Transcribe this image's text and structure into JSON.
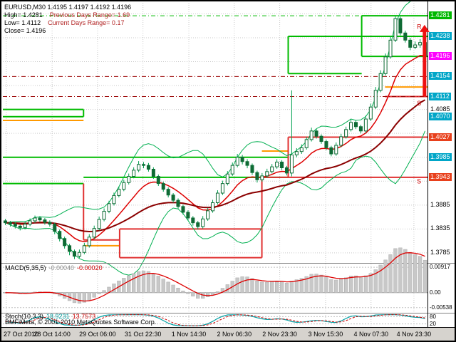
{
  "header": {
    "line1": "EURUSD,M30 1.4195 1.4197 1.4192 1.4196",
    "rows": [
      {
        "label": "High= 1.4281",
        "extra": "Previous Days Range= 1.69"
      },
      {
        "label": "Low= 1.4112",
        "extra": "Current Days Range= 0.17"
      },
      {
        "label": "Close= 1.4196",
        "extra": ""
      }
    ]
  },
  "footer": {
    "copyright": "BMFiMeta, © 2001-2010 MetaQuotes Software Corp."
  },
  "chart_data": {
    "type": "candlestick",
    "symbol": "EURUSD",
    "timeframe": "M30",
    "ylim": [
      1.3764,
      1.4308
    ],
    "grid_prices": [
      1.4285,
      1.4235,
      1.4185,
      1.4135,
      1.4085,
      1.4035,
      1.3985,
      1.3935,
      1.3885,
      1.3835,
      1.3785
    ],
    "ohlc": [
      [
        1.3852,
        1.3856,
        1.3843,
        1.3848
      ],
      [
        1.3848,
        1.3852,
        1.384,
        1.3845
      ],
      [
        1.3845,
        1.3849,
        1.3836,
        1.3841
      ],
      [
        1.3841,
        1.3845,
        1.3832,
        1.3838
      ],
      [
        1.3838,
        1.385,
        1.3834,
        1.3845
      ],
      [
        1.3845,
        1.3857,
        1.3841,
        1.3852
      ],
      [
        1.3852,
        1.3863,
        1.3848,
        1.3858
      ],
      [
        1.3858,
        1.3862,
        1.3849,
        1.3854
      ],
      [
        1.3854,
        1.3858,
        1.3844,
        1.3849
      ],
      [
        1.3849,
        1.3853,
        1.384,
        1.3845
      ],
      [
        1.3845,
        1.3848,
        1.3824,
        1.383
      ],
      [
        1.383,
        1.3834,
        1.3809,
        1.3815
      ],
      [
        1.3815,
        1.3819,
        1.3794,
        1.38
      ],
      [
        1.38,
        1.3804,
        1.378,
        1.3788
      ],
      [
        1.3788,
        1.3792,
        1.3772,
        1.3778
      ],
      [
        1.3778,
        1.3792,
        1.3774,
        1.3786
      ],
      [
        1.3786,
        1.3806,
        1.3782,
        1.38
      ],
      [
        1.38,
        1.3824,
        1.3796,
        1.3818
      ],
      [
        1.3818,
        1.3842,
        1.3814,
        1.3836
      ],
      [
        1.3836,
        1.3861,
        1.3832,
        1.3855
      ],
      [
        1.3855,
        1.3878,
        1.3851,
        1.3872
      ],
      [
        1.3872,
        1.3894,
        1.3868,
        1.3888
      ],
      [
        1.3888,
        1.3911,
        1.3884,
        1.3905
      ],
      [
        1.3905,
        1.3924,
        1.3901,
        1.3918
      ],
      [
        1.3918,
        1.3938,
        1.3914,
        1.3932
      ],
      [
        1.3932,
        1.3951,
        1.3928,
        1.3945
      ],
      [
        1.3945,
        1.3964,
        1.3941,
        1.3958
      ],
      [
        1.3958,
        1.3977,
        1.3954,
        1.397
      ],
      [
        1.397,
        1.3975,
        1.3962,
        1.3968
      ],
      [
        1.3968,
        1.3973,
        1.3955,
        1.396
      ],
      [
        1.396,
        1.3964,
        1.394,
        1.3945
      ],
      [
        1.3945,
        1.3949,
        1.3925,
        1.393
      ],
      [
        1.393,
        1.3934,
        1.3913,
        1.3918
      ],
      [
        1.3918,
        1.3922,
        1.3901,
        1.3906
      ],
      [
        1.3906,
        1.391,
        1.389,
        1.3895
      ],
      [
        1.3895,
        1.3899,
        1.3877,
        1.3882
      ],
      [
        1.3882,
        1.3886,
        1.3865,
        1.387
      ],
      [
        1.387,
        1.3874,
        1.3853,
        1.3858
      ],
      [
        1.3858,
        1.3862,
        1.3842,
        1.3848
      ],
      [
        1.3848,
        1.3852,
        1.3834,
        1.384
      ],
      [
        1.384,
        1.3862,
        1.3836,
        1.3856
      ],
      [
        1.3856,
        1.3879,
        1.3852,
        1.3873
      ],
      [
        1.3873,
        1.3896,
        1.3869,
        1.389
      ],
      [
        1.389,
        1.3916,
        1.3886,
        1.391
      ],
      [
        1.391,
        1.3936,
        1.3906,
        1.393
      ],
      [
        1.393,
        1.3956,
        1.3926,
        1.395
      ],
      [
        1.395,
        1.3974,
        1.3946,
        1.3968
      ],
      [
        1.3968,
        1.3992,
        1.3964,
        1.3985
      ],
      [
        1.3985,
        1.399,
        1.397,
        1.3976
      ],
      [
        1.3976,
        1.3981,
        1.3962,
        1.3968
      ],
      [
        1.3968,
        1.3972,
        1.3948,
        1.3953
      ],
      [
        1.3953,
        1.3957,
        1.3932,
        1.3938
      ],
      [
        1.3938,
        1.3952,
        1.3934,
        1.3946
      ],
      [
        1.3946,
        1.3961,
        1.3942,
        1.3955
      ],
      [
        1.3955,
        1.3971,
        1.3951,
        1.3965
      ],
      [
        1.3965,
        1.3981,
        1.3961,
        1.3975
      ],
      [
        1.3975,
        1.3979,
        1.3958,
        1.3963
      ],
      [
        1.3963,
        1.3967,
        1.3947,
        1.3952
      ],
      [
        1.3952,
        1.4125,
        1.3945,
        1.399
      ],
      [
        1.399,
        1.4004,
        1.3985,
        1.3997
      ],
      [
        1.3997,
        1.4012,
        1.3992,
        1.4005
      ],
      [
        1.4005,
        1.4028,
        1.4001,
        1.4022
      ],
      [
        1.4022,
        1.4047,
        1.4018,
        1.404
      ],
      [
        1.404,
        1.4044,
        1.4024,
        1.4029
      ],
      [
        1.4029,
        1.4033,
        1.4013,
        1.4018
      ],
      [
        1.4018,
        1.4022,
        1.4,
        1.4005
      ],
      [
        1.4005,
        1.4009,
        1.3987,
        1.3992
      ],
      [
        1.3992,
        1.4016,
        1.3988,
        1.401
      ],
      [
        1.401,
        1.4034,
        1.4006,
        1.4028
      ],
      [
        1.4028,
        1.4049,
        1.4024,
        1.4043
      ],
      [
        1.4043,
        1.4065,
        1.4039,
        1.4058
      ],
      [
        1.4058,
        1.4062,
        1.4044,
        1.4049
      ],
      [
        1.4049,
        1.4053,
        1.4035,
        1.404
      ],
      [
        1.404,
        1.4072,
        1.4036,
        1.4065
      ],
      [
        1.4065,
        1.4097,
        1.4061,
        1.409
      ],
      [
        1.409,
        1.4132,
        1.4086,
        1.4125
      ],
      [
        1.4125,
        1.4167,
        1.4121,
        1.416
      ],
      [
        1.416,
        1.4202,
        1.4156,
        1.4195
      ],
      [
        1.4195,
        1.4238,
        1.4191,
        1.423
      ],
      [
        1.423,
        1.4281,
        1.4226,
        1.4275
      ],
      [
        1.4275,
        1.4279,
        1.424,
        1.4245
      ],
      [
        1.4245,
        1.425,
        1.4225,
        1.423
      ],
      [
        1.423,
        1.4235,
        1.4209,
        1.4215
      ],
      [
        1.4215,
        1.4227,
        1.4211,
        1.422
      ],
      [
        1.422,
        1.4232,
        1.4214,
        1.4225
      ],
      [
        1.4225,
        1.4229,
        1.419,
        1.4196
      ]
    ],
    "x_labels": [
      {
        "label": "27 Oct 2010",
        "f": 0.008
      },
      {
        "label": "28 Oct 14:00",
        "f": 0.116
      },
      {
        "label": "29 Oct 06:00",
        "f": 0.223
      },
      {
        "label": "31 Oct 22:30",
        "f": 0.33
      },
      {
        "label": "1 Nov 14:30",
        "f": 0.438
      },
      {
        "label": "2 Nov 06:30",
        "f": 0.545
      },
      {
        "label": "2 Nov 23:30",
        "f": 0.652
      },
      {
        "label": "3 Nov 15:30",
        "f": 0.76
      },
      {
        "label": "4 Nov 07:30",
        "f": 0.867
      },
      {
        "label": "4 Nov 23:30",
        "f": 0.968
      }
    ],
    "y_axis": [
      {
        "value": "1.4281",
        "type": "badge",
        "color": "#00B800"
      },
      {
        "value": "1.4238",
        "type": "badge",
        "color": "#00A6C8"
      },
      {
        "value": "1.4196",
        "type": "badge",
        "color": "#FF00FF"
      },
      {
        "value": "1.4154",
        "type": "badge",
        "color": "#00A6C8"
      },
      {
        "value": "1.4112",
        "type": "badge",
        "color": "#00A6C8"
      },
      {
        "value": "1.4085",
        "type": "plain"
      },
      {
        "value": "1.4070",
        "type": "badge",
        "color": "#00A6C8"
      },
      {
        "value": "1.4027",
        "type": "badge",
        "color": "#E8401C"
      },
      {
        "value": "1.3985",
        "type": "badge",
        "color": "#00A6C8"
      },
      {
        "value": "1.3943",
        "type": "badge",
        "color": "#E8401C"
      },
      {
        "value": "1.3885",
        "type": "plain"
      },
      {
        "value": "1.3835",
        "type": "plain"
      },
      {
        "value": "1.3785",
        "type": "plain"
      }
    ],
    "levels": {
      "colors": {
        "green": "#00BB00",
        "red": "#E03030",
        "orange": "#FF9900",
        "maroon": "#990000"
      },
      "segments": [
        {
          "p": 1.4281,
          "x1": 0.845,
          "x2": 1.0,
          "c": "green"
        },
        {
          "p": 1.4196,
          "x1": 0.845,
          "x2": 1.0,
          "c": "green"
        },
        {
          "p": 1.4238,
          "x1": 0.672,
          "x2": 1.0,
          "c": "green"
        },
        {
          "p": 1.416,
          "x1": 0.672,
          "x2": 0.845,
          "c": "green"
        },
        {
          "p": 1.4085,
          "x1": 0.0,
          "x2": 0.19,
          "c": "green"
        },
        {
          "p": 1.407,
          "x1": 0.0,
          "x2": 0.19,
          "c": "green"
        },
        {
          "p": 1.3985,
          "x1": 0.0,
          "x2": 0.672,
          "c": "green"
        },
        {
          "p": 1.3943,
          "x1": 0.19,
          "x2": 0.672,
          "c": "green"
        },
        {
          "p": 1.393,
          "x1": 0.0,
          "x2": 0.19,
          "c": "green"
        },
        {
          "p": 1.4112,
          "x1": 0.9,
          "x2": 1.0,
          "c": "red"
        },
        {
          "p": 1.4027,
          "x1": 0.672,
          "x2": 1.0,
          "c": "red"
        },
        {
          "p": 1.3943,
          "x1": 0.61,
          "x2": 1.0,
          "c": "red"
        },
        {
          "p": 1.3835,
          "x1": 0.275,
          "x2": 0.61,
          "c": "red"
        },
        {
          "p": 1.3812,
          "x1": 0.19,
          "x2": 0.275,
          "c": "red"
        },
        {
          "p": 1.3775,
          "x1": 0.275,
          "x2": 0.61,
          "c": "red"
        },
        {
          "p": 1.4132,
          "x1": 0.9,
          "x2": 1.0,
          "c": "orange"
        },
        {
          "p": 1.4062,
          "x1": 0.0,
          "x2": 0.19,
          "c": "orange"
        },
        {
          "p": 1.3998,
          "x1": 0.61,
          "x2": 0.672,
          "c": "orange"
        },
        {
          "p": 1.38,
          "x1": 0.19,
          "x2": 0.275,
          "c": "orange"
        }
      ],
      "verticals": [
        {
          "x": 0.845,
          "p1": 1.4281,
          "p2": 1.4196,
          "c": "green"
        },
        {
          "x": 0.672,
          "p1": 1.4238,
          "p2": 1.416,
          "c": "green"
        },
        {
          "x": 0.672,
          "p1": 1.3985,
          "p2": 1.3943,
          "c": "green"
        },
        {
          "x": 0.19,
          "p1": 1.4085,
          "p2": 1.407,
          "c": "green"
        },
        {
          "x": 0.61,
          "p1": 1.3943,
          "p2": 1.3775,
          "c": "red"
        },
        {
          "x": 0.672,
          "p1": 1.4027,
          "p2": 1.3943,
          "c": "red"
        },
        {
          "x": 0.275,
          "p1": 1.3835,
          "p2": 1.3775,
          "c": "red"
        },
        {
          "x": 0.19,
          "p1": 1.393,
          "p2": 1.3812,
          "c": "red"
        }
      ],
      "dashed": [
        {
          "p": 1.4281,
          "c": "green"
        },
        {
          "p": 1.4154,
          "c": "maroon"
        },
        {
          "p": 1.4112,
          "c": "maroon"
        }
      ]
    },
    "annotations": [
      {
        "text": "R",
        "p": 1.4258,
        "f": 0.975
      },
      {
        "text": "S",
        "p": 1.4098,
        "f": 0.975
      },
      {
        "text": "S",
        "p": 1.3935,
        "f": 0.975
      }
    ],
    "arrow": {
      "f": 0.993,
      "from": 1.4112,
      "to": 1.4262,
      "color": "#EE1111"
    },
    "macd": {
      "label": "MACD(5,35,5)",
      "value1": "-0.00040",
      "value2": "-0.00020",
      "axis": [
        "0.00917",
        "0.00",
        "-0.00538"
      ],
      "axis_values": [
        0.00917,
        0,
        -0.00538
      ],
      "range": {
        "top": 0.0105,
        "bottom": -0.007
      }
    },
    "stoch": {
      "label": "Stoch(10,3,3)",
      "value1": "18.9231",
      "value2": "13.7573",
      "levels": [
        80,
        20
      ],
      "axis": [
        "80",
        "20"
      ]
    }
  }
}
